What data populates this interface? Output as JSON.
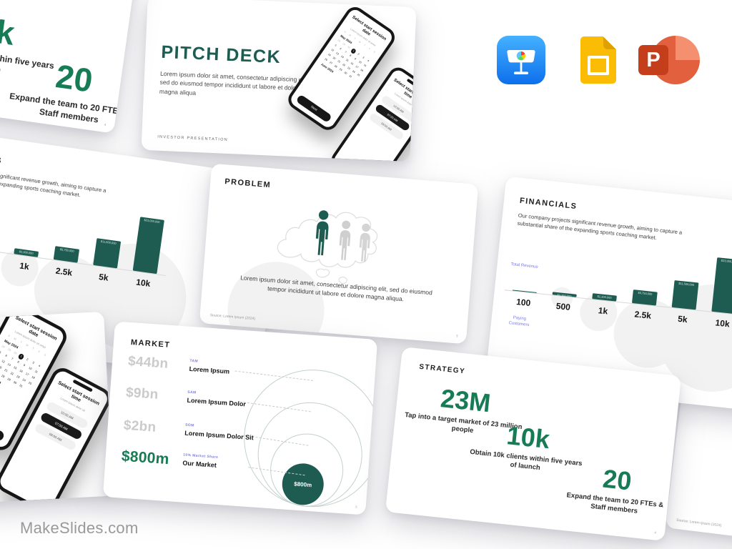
{
  "watermark": "MakeSlides.com",
  "app_icons": {
    "keynote": "Keynote",
    "google_slides": "Google Slides",
    "powerpoint": "PowerPoint",
    "powerpoint_letter": "P"
  },
  "cover": {
    "title": "PITCH DECK",
    "body": "Lorem ipsum dolor sit amet, consectetur adipiscing elit, sed do eiusmod tempor incididunt ut labore et dolore magna aliqua",
    "footer": "INVESTOR PRESENTATION"
  },
  "phone_date": {
    "title": "Select start session date",
    "subtitle": "Lorem ipsum dolor sit amet",
    "weekdays": [
      "S",
      "M",
      "T",
      "W",
      "T",
      "F",
      "S"
    ],
    "leading_days": [
      "28",
      "29",
      "30"
    ],
    "day_count": 31,
    "selected_day": 1,
    "month_top": "May 2024",
    "month_bottom": "June 2024",
    "next_button": "Next"
  },
  "phone_time": {
    "title": "Select start session time",
    "subtitle": "Lorem ipsum dolor sit",
    "options": [
      "10:00 AM",
      "07:00 AM",
      "09:00 AM"
    ],
    "selected_index": 1
  },
  "problem": {
    "title": "PROBLEM",
    "body": "Lorem ipsum dolor sit amet, consectetur adipiscing elit, sed do eiusmod tempor incididunt ut labore et dolore magna aliqua.",
    "source": "Source: Lorem Ipsum (2024)",
    "page": "3"
  },
  "market": {
    "title": "MARKET",
    "rows": [
      {
        "value": "$44bn",
        "tag": "TAM",
        "label": "Lorem Ipsum"
      },
      {
        "value": "$9bn",
        "tag": "SAM",
        "label": "Lorem Ipsum Dolor"
      },
      {
        "value": "$2bn",
        "tag": "SOM",
        "label": "Lorem Ipsum Dolor Sit"
      },
      {
        "value": "$800m",
        "tag": "10% Market Share",
        "label": "Our Market"
      }
    ],
    "bubble": "$800m",
    "page": "5"
  },
  "financials": {
    "title": "FINANCIALS",
    "body": "Our company projects significant revenue growth, aiming to capture a substantial share of the expanding sports coaching market.",
    "y_label": "Total Revenue",
    "x_label": "Paying Customers",
    "page": "7",
    "chart": {
      "categories": [
        "100",
        "500",
        "1k",
        "2.5k",
        "5k",
        "10k"
      ],
      "values": [
        230000,
        1150000,
        2300000,
        5750000,
        11500000,
        23000000
      ],
      "bar_labels": [
        "",
        "$1,150,000",
        "$2,300,000",
        "$5,750,000",
        "$11,500,000",
        "$23,000,000"
      ],
      "max": 23000000
    }
  },
  "strategy": {
    "title": "STRATEGY",
    "stats": [
      {
        "value": "23M",
        "caption": "Tap into a target market of 23 million people"
      },
      {
        "value": "10k",
        "caption": "Obtain 10k clients within five years of launch"
      },
      {
        "value": "20",
        "caption": "Expand the team to 20 FTEs & Staff members"
      }
    ],
    "page": "4"
  },
  "chart_data": {
    "type": "bar",
    "title": "FINANCIALS",
    "categories": [
      "100",
      "500",
      "1k",
      "2.5k",
      "5k",
      "10k"
    ],
    "values": [
      230000,
      1150000,
      2300000,
      5750000,
      11500000,
      23000000
    ],
    "bar_labels": [
      "",
      "$1,150,000",
      "$2,300,000",
      "$5,750,000",
      "$11,500,000",
      "$23,000,000"
    ],
    "xlabel": "Paying Customers",
    "ylabel": "Total Revenue",
    "ylim": [
      0,
      23000000
    ],
    "grid": false,
    "legend": "none"
  },
  "colors": {
    "teal": "#1E5C52",
    "green": "#177B55",
    "purple": "#7B7BEB",
    "value_gray": "#CBCBCB"
  }
}
